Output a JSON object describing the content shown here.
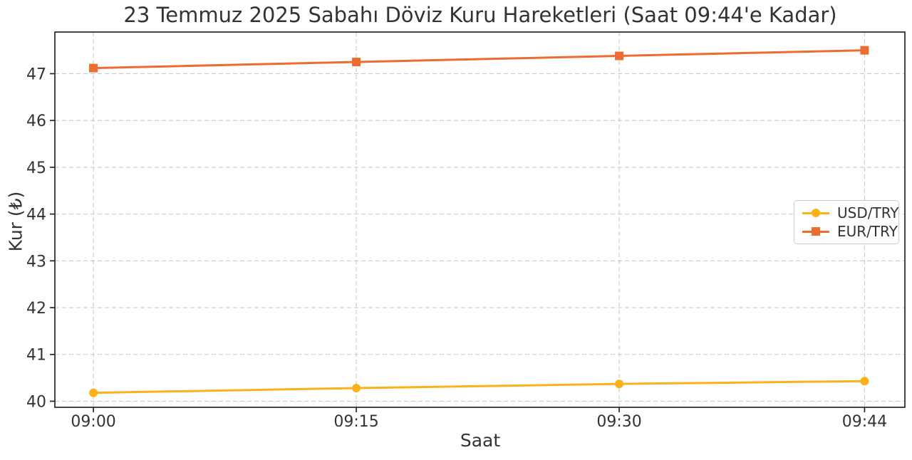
{
  "chart_data": {
    "type": "line",
    "title": "23 Temmuz 2025 Sabahı Döviz Kuru Hareketleri (Saat 09:44'e Kadar)",
    "xlabel": "Saat",
    "ylabel": "Kur (₺)",
    "x_tick_labels": [
      "09:00",
      "09:15",
      "09:30",
      "09:44"
    ],
    "x_minutes": [
      0,
      15,
      30,
      44
    ],
    "y_ticks": [
      40,
      41,
      42,
      43,
      44,
      45,
      46,
      47
    ],
    "xlim_minutes": [
      -2.2,
      46.3
    ],
    "ylim": [
      39.87,
      47.89
    ],
    "grid": true,
    "grid_style": "dashed",
    "legend_position": "center-right",
    "series": [
      {
        "name": "USD/TRY",
        "marker": "circle",
        "color": "#FBB117",
        "x_minutes": [
          0,
          15,
          30,
          44
        ],
        "values": [
          40.18,
          40.28,
          40.37,
          40.43
        ]
      },
      {
        "name": "EUR/TRY",
        "marker": "square",
        "color": "#ED6C30",
        "x_minutes": [
          0,
          15,
          30,
          44
        ],
        "values": [
          47.12,
          47.25,
          47.38,
          47.5
        ]
      }
    ],
    "colors": {
      "text": "#333333",
      "spine": "#262626",
      "grid": "#c9c9c9",
      "background": "#ffffff"
    }
  }
}
